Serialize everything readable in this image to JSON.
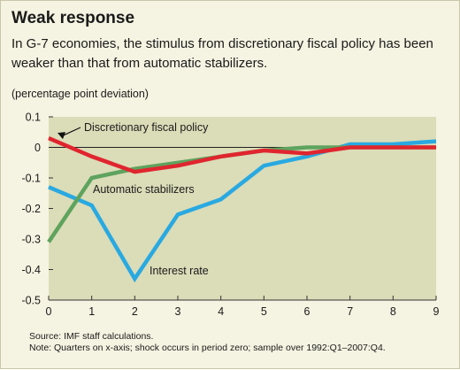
{
  "header": {
    "title": "Weak response",
    "subtitle": "In G-7 economies, the stimulus from discretionary fiscal policy has been weaker than that from automatic stabilizers."
  },
  "unit_label": "(percentage point deviation)",
  "footnotes": {
    "source": "Source: IMF staff calculations.",
    "note": "Note: Quarters on x-axis; shock occurs in period zero; sample over 1992:Q1–2007:Q4."
  },
  "colors": {
    "background": "#f5f3e1",
    "plot_area": "#dbdcb8",
    "discretionary": "#e0252f",
    "automatic": "#5ea35e",
    "interest": "#29a9e1"
  },
  "chart_data": {
    "type": "line",
    "x": [
      0,
      1,
      2,
      3,
      4,
      5,
      6,
      7,
      8,
      9
    ],
    "xlim": [
      0,
      9
    ],
    "ylim": [
      -0.5,
      0.1
    ],
    "x_ticks": [
      "0",
      "1",
      "2",
      "3",
      "4",
      "5",
      "6",
      "7",
      "8",
      "9"
    ],
    "y_ticks": [
      "0.1",
      "0",
      "-0.1",
      "-0.2",
      "-0.3",
      "-0.4",
      "-0.5"
    ],
    "series": [
      {
        "name": "Discretionary fiscal policy",
        "color": "#e0252f",
        "values": [
          0.03,
          -0.03,
          -0.08,
          -0.06,
          -0.03,
          -0.01,
          -0.02,
          0.0,
          0.0,
          0.0
        ]
      },
      {
        "name": "Automatic stabilizers",
        "color": "#5ea35e",
        "values": [
          -0.31,
          -0.1,
          -0.07,
          -0.05,
          -0.03,
          -0.01,
          0.0,
          0.0,
          0.0,
          0.0
        ]
      },
      {
        "name": "Interest rate",
        "color": "#29a9e1",
        "values": [
          -0.13,
          -0.19,
          -0.43,
          -0.22,
          -0.17,
          -0.06,
          -0.03,
          0.01,
          0.01,
          0.02
        ]
      }
    ],
    "grid": false,
    "zero_line": true
  }
}
